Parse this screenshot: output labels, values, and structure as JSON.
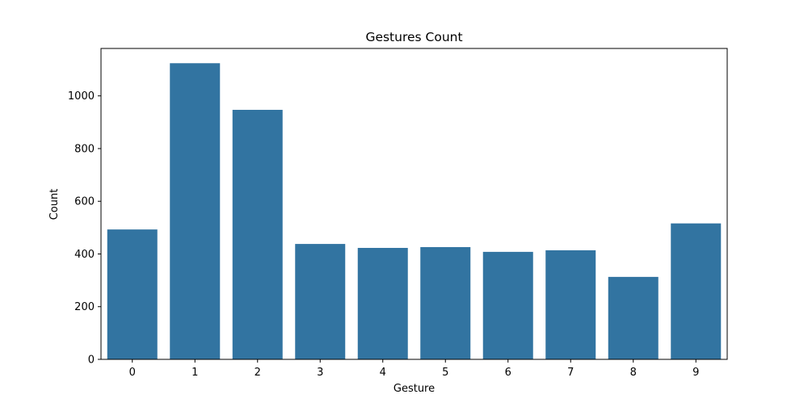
{
  "chart_data": {
    "type": "bar",
    "title": "Gestures Count",
    "xlabel": "Gesture",
    "ylabel": "Count",
    "categories": [
      "0",
      "1",
      "2",
      "3",
      "4",
      "5",
      "6",
      "7",
      "8",
      "9"
    ],
    "values": [
      493,
      1124,
      947,
      438,
      423,
      426,
      408,
      414,
      313,
      516
    ],
    "ylim": [
      0,
      1180
    ],
    "yticks": [
      0,
      200,
      400,
      600,
      800,
      1000
    ],
    "grid": false,
    "legend": "none",
    "colors": {
      "bar": "#3274a1",
      "axis": "#000000"
    }
  }
}
